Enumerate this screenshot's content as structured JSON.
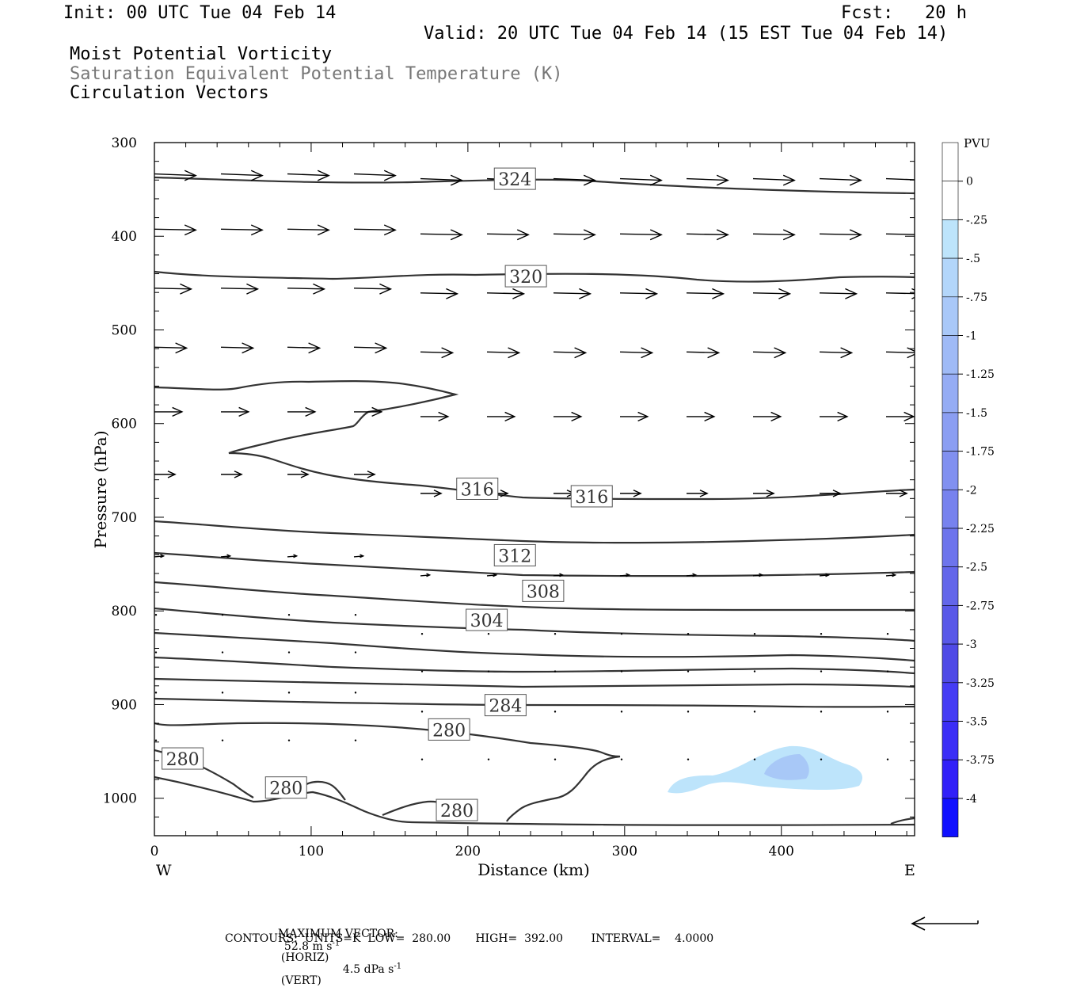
{
  "header": {
    "init": "Init: 00 UTC Tue 04 Feb 14",
    "fcst": "Fcst:   20 h",
    "valid": "Valid: 20 UTC Tue 04 Feb 14 (15 EST Tue 04 Feb 14)",
    "line1": "Moist Potential Vorticity",
    "line2": "Saturation Equivalent Potential Temperature (K)",
    "line3": "Circulation Vectors"
  },
  "footer": {
    "max_label": "MAXIMUM VECTOR:",
    "max_horiz": "52.8 m s",
    "horiz_tag": "(HORIZ)",
    "max_vert": "4.5 dPa s",
    "vert_tag": "(VERT)",
    "exp": "-1",
    "contours": "CONTOURS:  UNITS=K  LOW=  280.00       HIGH=  392.00        INTERVAL=    4.0000"
  },
  "colors": {
    "contour": "#333333",
    "shade_light": "#bde4fb",
    "shade_dark": "#a8c8f7"
  },
  "chart_data": {
    "type": "contour",
    "xlabel": "Distance (km)",
    "ylabel": "Pressure (hPa)",
    "xlim": [
      0,
      485
    ],
    "ylim": [
      1040,
      300
    ],
    "x_ticks": [
      0,
      100,
      200,
      300,
      400
    ],
    "y_ticks": [
      300,
      400,
      500,
      600,
      700,
      800,
      900,
      1000
    ],
    "x_ends": {
      "left": "W",
      "right": "E"
    },
    "contour_labels": [
      {
        "value": "324",
        "x": 230,
        "p": 339
      },
      {
        "value": "320",
        "x": 237,
        "p": 443
      },
      {
        "value": "316",
        "x": 206,
        "p": 670
      },
      {
        "value": "316",
        "x": 279,
        "p": 678
      },
      {
        "value": "312",
        "x": 230,
        "p": 741
      },
      {
        "value": "308",
        "x": 248,
        "p": 779
      },
      {
        "value": "304",
        "x": 212,
        "p": 810
      },
      {
        "value": "284",
        "x": 224,
        "p": 901
      },
      {
        "value": "280",
        "x": 188,
        "p": 927
      },
      {
        "value": "280",
        "x": 18,
        "p": 958
      },
      {
        "value": "280",
        "x": 84,
        "p": 989
      },
      {
        "value": "280",
        "x": 193,
        "p": 1013
      }
    ],
    "colorbar": {
      "title": "PVU",
      "labels": [
        "0",
        "-.25",
        "-.5",
        "-.75",
        "-1",
        "-1.25",
        "-1.5",
        "-1.75",
        "-2",
        "-2.25",
        "-2.5",
        "-2.75",
        "-3",
        "-3.25",
        "-3.5",
        "-3.75",
        "-4"
      ],
      "colors": [
        "#ffffff",
        "#ffffff",
        "#bde4fb",
        "#b3d6fa",
        "#a9c8f8",
        "#9fbaf6",
        "#95acf4",
        "#8b9ef2",
        "#8190f0",
        "#7782ee",
        "#6d74ec",
        "#6366ea",
        "#5958e8",
        "#4f4ae6",
        "#453cf4",
        "#3b2ef6",
        "#3120f8",
        "#1010ff"
      ]
    },
    "vector_rows": [
      {
        "p": 336,
        "dx": 18,
        "dy": 2
      },
      {
        "p": 395,
        "dx": 18,
        "dy": 1
      },
      {
        "p": 458,
        "dx": 16,
        "dy": 1
      },
      {
        "p": 521,
        "dx": 14,
        "dy": 1
      },
      {
        "p": 590,
        "dx": 12,
        "dy": 0
      },
      {
        "p": 672,
        "dx": 9,
        "dy": 0
      },
      {
        "p": 760,
        "dx": 4,
        "dy": -1
      },
      {
        "p": 822,
        "dx": 1,
        "dy": 0
      },
      {
        "p": 862,
        "dx": 0.3,
        "dy": 0
      },
      {
        "p": 905,
        "dx": 0.3,
        "dy": 0
      },
      {
        "p": 956,
        "dx": 0.3,
        "dy": 0
      }
    ]
  }
}
